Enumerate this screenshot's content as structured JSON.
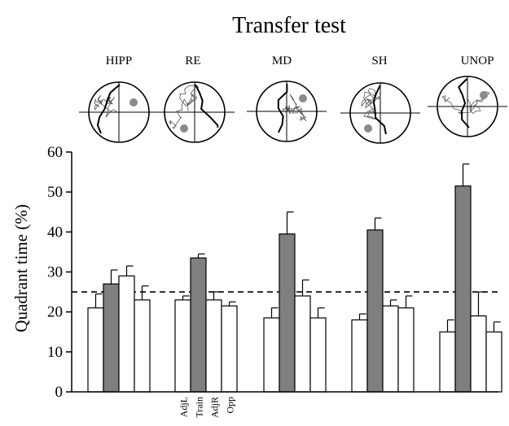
{
  "chart_data": {
    "type": "bar",
    "title": "Transfer test",
    "ylabel": "Quadrant time (%)",
    "xlabel": "",
    "ylim": [
      0,
      60
    ],
    "yticks": [
      0,
      10,
      20,
      30,
      40,
      50,
      60
    ],
    "chance_level": 25,
    "groups": [
      "HIPP",
      "RE",
      "MD",
      "SH",
      "UNOP"
    ],
    "quadrants": [
      "AdjL",
      "Train",
      "AdjR",
      "Opp"
    ],
    "highlight_quadrant": "Train",
    "values": [
      [
        21,
        27,
        29,
        23
      ],
      [
        23,
        33.5,
        23,
        21.5
      ],
      [
        18.5,
        39.5,
        24,
        18.5
      ],
      [
        18,
        40.5,
        21.5,
        21
      ],
      [
        15,
        51.5,
        19,
        15
      ]
    ],
    "errors": [
      [
        3.5,
        3.5,
        2.5,
        3.5
      ],
      [
        1,
        1,
        2,
        1
      ],
      [
        2.5,
        5.5,
        4,
        2.5
      ],
      [
        1.5,
        3,
        1.5,
        3
      ],
      [
        3,
        5.5,
        6,
        2.5
      ]
    ],
    "colors": {
      "train_bar": "#7f7f7f",
      "other_bar": "#ffffff",
      "stroke": "#000000"
    },
    "legend": "none",
    "grid": false
  }
}
